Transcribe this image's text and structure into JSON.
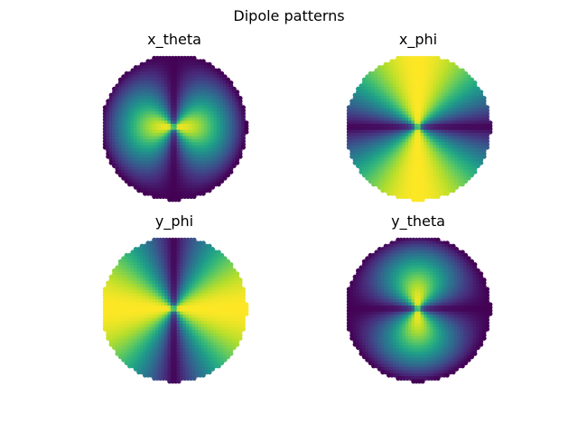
{
  "figure": {
    "title": "Dipole patterns"
  },
  "chart_data": [
    {
      "type": "scatter",
      "title": "x_theta",
      "pattern": "x_theta",
      "colormap": "viridis",
      "axis": "off",
      "grid": false,
      "value_range": [
        0,
        1
      ]
    },
    {
      "type": "scatter",
      "title": "x_phi",
      "pattern": "x_phi",
      "colormap": "viridis",
      "axis": "off",
      "grid": false,
      "value_range": [
        0,
        1
      ]
    },
    {
      "type": "scatter",
      "title": "y_phi",
      "pattern": "y_phi",
      "colormap": "viridis",
      "axis": "off",
      "grid": false,
      "value_range": [
        0,
        1
      ]
    },
    {
      "type": "scatter",
      "title": "y_theta",
      "pattern": "y_theta",
      "colormap": "viridis",
      "axis": "off",
      "grid": false,
      "value_range": [
        0,
        1
      ]
    }
  ]
}
